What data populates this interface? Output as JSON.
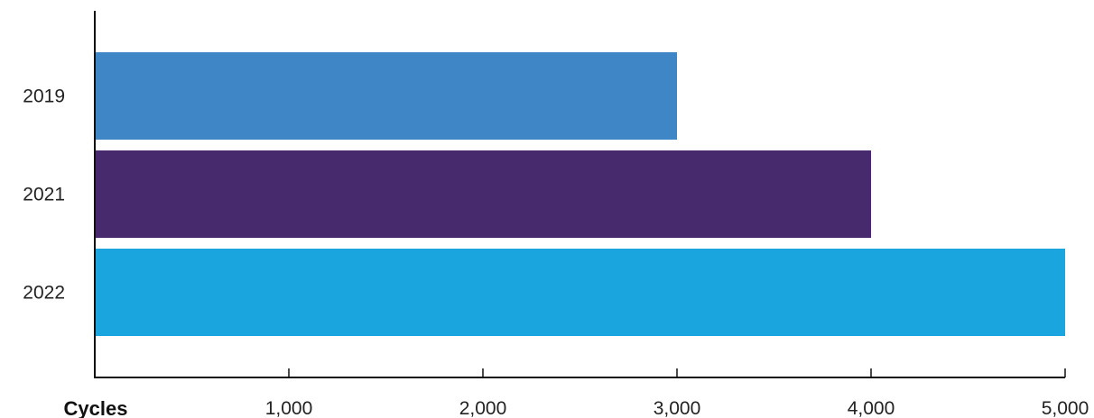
{
  "chart_data": {
    "type": "bar",
    "orientation": "horizontal",
    "categories": [
      "2019",
      "2021",
      "2022"
    ],
    "values": [
      3000,
      4000,
      5000
    ],
    "colors": [
      "#3f86c6",
      "#472a6d",
      "#1aa5df"
    ],
    "xlabel": "Cycles",
    "ylabel": "",
    "title": "",
    "xlim": [
      0,
      5000
    ],
    "xticks": [
      1000,
      2000,
      3000,
      4000,
      5000
    ],
    "xtick_labels": [
      "1,000",
      "2,000",
      "3,000",
      "4,000",
      "5,000"
    ],
    "grid": false,
    "legend": "none"
  }
}
